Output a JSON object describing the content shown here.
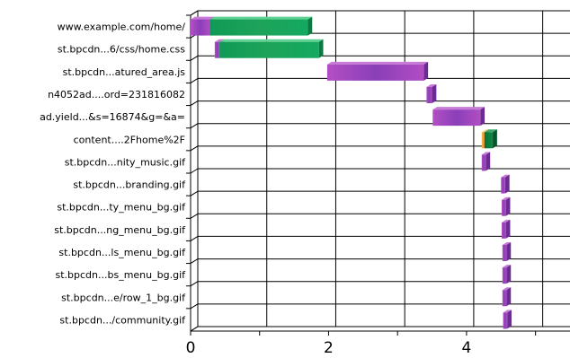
{
  "chart_data": {
    "type": "bar",
    "subtype": "waterfall-timeline",
    "title": "",
    "xlabel": "",
    "ylabel": "",
    "xlim": [
      0,
      5.5
    ],
    "x_ticks": [
      0,
      2,
      4
    ],
    "grid": true,
    "colors": {
      "purple": "#8a3fb8",
      "green": "#1ea35a",
      "orange": "#f2a23a",
      "dark_green": "#0b7a3a"
    },
    "requests": [
      {
        "label": "www.example.com/home/",
        "segments": [
          {
            "start": 0.0,
            "end": 0.28,
            "color": "purple"
          },
          {
            "start": 0.28,
            "end": 1.7,
            "color": "green"
          }
        ]
      },
      {
        "label": "st.bpcdn...6/css/home.css",
        "segments": [
          {
            "start": 0.35,
            "end": 0.42,
            "color": "purple"
          },
          {
            "start": 0.42,
            "end": 1.86,
            "color": "green"
          }
        ]
      },
      {
        "label": "st.bpcdn...atured_area.js",
        "segments": [
          {
            "start": 1.98,
            "end": 3.38,
            "color": "purple"
          }
        ]
      },
      {
        "label": "n4052ad....ord=231816082",
        "segments": [
          {
            "start": 3.42,
            "end": 3.5,
            "color": "purple"
          }
        ]
      },
      {
        "label": "ad.yield...&s=16874&g=&a=",
        "segments": [
          {
            "start": 3.51,
            "end": 4.2,
            "color": "purple"
          }
        ]
      },
      {
        "label": "content....2Fhome%2F",
        "segments": [
          {
            "start": 4.22,
            "end": 4.26,
            "color": "orange"
          },
          {
            "start": 4.26,
            "end": 4.38,
            "color": "dark_green"
          }
        ]
      },
      {
        "label": "st.bpcdn...nity_music.gif",
        "segments": [
          {
            "start": 4.22,
            "end": 4.28,
            "color": "purple"
          }
        ]
      },
      {
        "label": "st.bpcdn...branding.gif",
        "segments": [
          {
            "start": 4.5,
            "end": 4.56,
            "color": "purple"
          }
        ]
      },
      {
        "label": "st.bpcdn...ty_menu_bg.gif",
        "segments": [
          {
            "start": 4.51,
            "end": 4.57,
            "color": "purple"
          }
        ]
      },
      {
        "label": "st.bpcdn...ng_menu_bg.gif",
        "segments": [
          {
            "start": 4.51,
            "end": 4.57,
            "color": "purple"
          }
        ]
      },
      {
        "label": "st.bpcdn...ls_menu_bg.gif",
        "segments": [
          {
            "start": 4.52,
            "end": 4.58,
            "color": "purple"
          }
        ]
      },
      {
        "label": "st.bpcdn...bs_menu_bg.gif",
        "segments": [
          {
            "start": 4.52,
            "end": 4.58,
            "color": "purple"
          }
        ]
      },
      {
        "label": "st.bpcdn...e/row_1_bg.gif",
        "segments": [
          {
            "start": 4.52,
            "end": 4.58,
            "color": "purple"
          }
        ]
      },
      {
        "label": "st.bpcdn.../community.gif",
        "segments": [
          {
            "start": 4.53,
            "end": 4.59,
            "color": "purple"
          }
        ]
      }
    ]
  }
}
